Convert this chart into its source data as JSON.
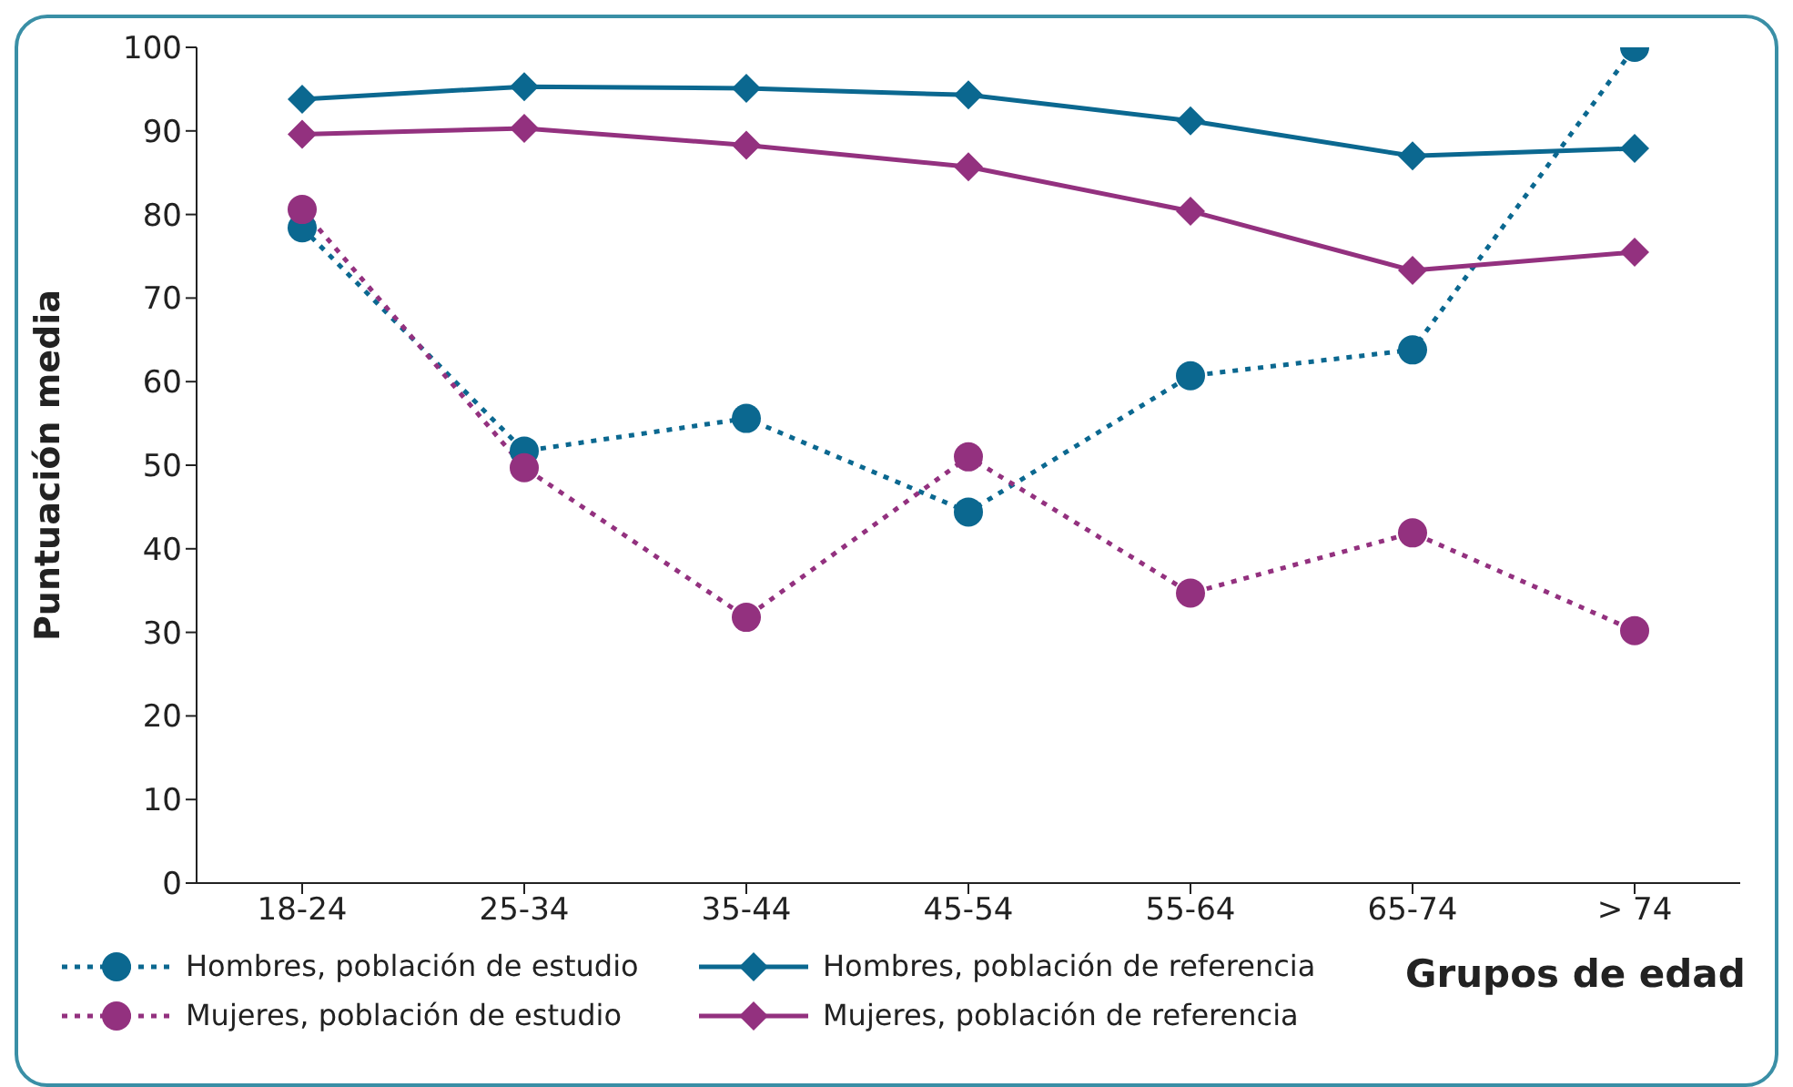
{
  "chart_data": {
    "type": "line",
    "ylabel": "Puntuación media",
    "xlabel": "Grupos de edad",
    "categories": [
      "18-24",
      "25-34",
      "35-44",
      "45-54",
      "55-64",
      "65-74",
      "> 74"
    ],
    "series": [
      {
        "name": "Hombres, población de estudio",
        "color": "#0b6890",
        "marker": "circle",
        "line_style": "dotted",
        "values": [
          78.4,
          51.7,
          55.6,
          44.4,
          60.7,
          63.8,
          100
        ]
      },
      {
        "name": "Hombres, población de referencia",
        "color": "#0b6890",
        "marker": "diamond",
        "line_style": "solid",
        "values": [
          93.8,
          95.3,
          95.1,
          94.3,
          91.2,
          87,
          87.9
        ]
      },
      {
        "name": "Mujeres, población de estudio",
        "color": "#93317f",
        "marker": "circle",
        "line_style": "dotted",
        "values": [
          80.6,
          49.7,
          31.8,
          51,
          34.7,
          41.9,
          30.2
        ]
      },
      {
        "name": "Mujeres, población de referencia",
        "color": "#93317f",
        "marker": "diamond",
        "line_style": "solid",
        "values": [
          89.6,
          90.3,
          88.3,
          85.7,
          80.4,
          73.3,
          75.5
        ]
      }
    ],
    "ylim": [
      0,
      100
    ],
    "yticks": [
      0,
      10,
      20,
      30,
      40,
      50,
      60,
      70,
      80,
      90,
      100
    ],
    "grid": false,
    "legend": "bottom"
  }
}
